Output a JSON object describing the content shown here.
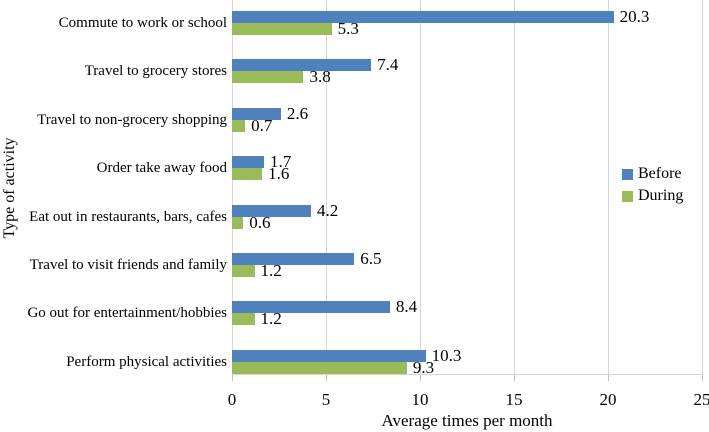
{
  "chart_data": {
    "type": "bar",
    "orientation": "horizontal",
    "title": "",
    "xlabel": "Average times per month",
    "ylabel": "Type of activity",
    "categories": [
      "Commute to work or school",
      "Travel to grocery stores",
      "Travel to non-grocery shopping",
      "Order take away food",
      "Eat out in restaurants, bars, cafes",
      "Travel to visit friends and family",
      "Go out for entertainment/hobbies",
      "Perform physical activities"
    ],
    "series": [
      {
        "name": "Before",
        "color": "#4F81BD",
        "values": [
          20.3,
          7.4,
          2.6,
          1.7,
          4.2,
          6.5,
          8.4,
          10.3
        ]
      },
      {
        "name": "During",
        "color": "#9BBB59",
        "values": [
          5.3,
          3.8,
          0.7,
          1.6,
          0.6,
          1.2,
          1.2,
          9.3
        ]
      }
    ],
    "xticks": [
      0,
      5,
      10,
      15,
      20,
      25
    ],
    "xlim": [
      0,
      25
    ],
    "grid": "vertical",
    "value_labels": true,
    "legend_position": "right"
  },
  "colors": {
    "before": "#4F81BD",
    "during": "#9BBB59",
    "gridline": "#D6D6D6",
    "tick": "#BFBFBF",
    "text": "#000000",
    "background": "#FFFFFF"
  }
}
